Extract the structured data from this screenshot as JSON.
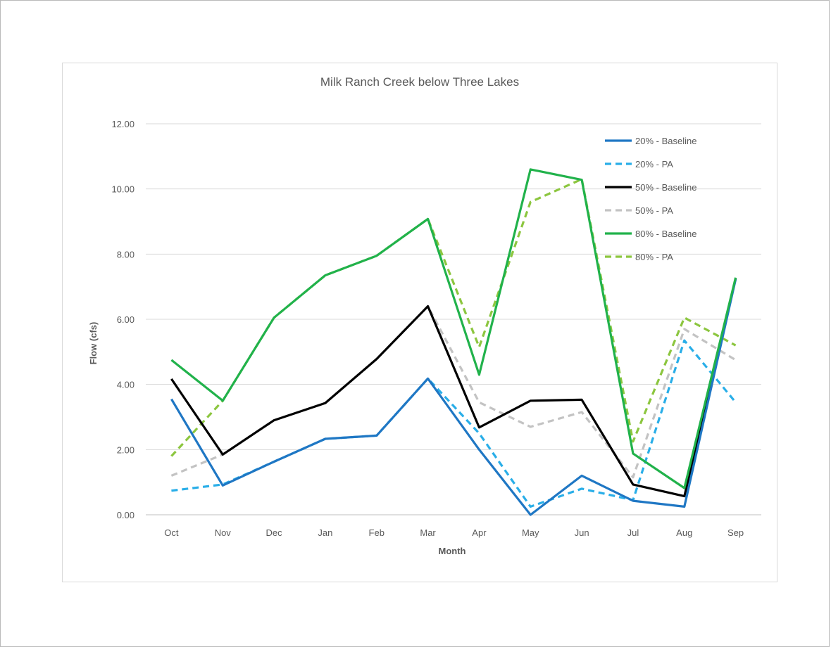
{
  "chart_data": {
    "type": "line",
    "title": "Milk Ranch Creek below Three Lakes",
    "xlabel": "Month",
    "ylabel": "Flow (cfs)",
    "ylim": [
      0,
      12
    ],
    "ytick_step": 2,
    "ytick_decimals": 2,
    "grid": "horizontal",
    "legend_position": "top-right",
    "categories": [
      "Oct",
      "Nov",
      "Dec",
      "Jan",
      "Feb",
      "Mar",
      "Apr",
      "May",
      "Jun",
      "Jul",
      "Aug",
      "Sep"
    ],
    "series": [
      {
        "name": "20% - Baseline",
        "color": "#1f77c4",
        "dashed": false,
        "values": [
          3.55,
          0.9,
          1.63,
          2.33,
          2.43,
          4.18,
          2.0,
          0.0,
          1.2,
          0.43,
          0.25,
          7.23
        ]
      },
      {
        "name": "20% - PA",
        "color": "#29aee8",
        "dashed": true,
        "values": [
          0.74,
          0.93,
          1.63,
          2.33,
          2.43,
          4.18,
          2.5,
          0.25,
          0.8,
          0.45,
          5.35,
          3.45
        ]
      },
      {
        "name": "50% - Baseline",
        "color": "#000000",
        "dashed": false,
        "values": [
          4.17,
          1.85,
          2.9,
          3.43,
          4.78,
          6.4,
          2.68,
          3.5,
          3.53,
          0.93,
          0.57,
          7.25
        ]
      },
      {
        "name": "50% - PA",
        "color": "#c3c3c3",
        "dashed": true,
        "values": [
          1.2,
          1.85,
          2.9,
          3.43,
          4.78,
          6.4,
          3.45,
          2.7,
          3.15,
          1.15,
          5.7,
          4.75
        ]
      },
      {
        "name": "80% - Baseline",
        "color": "#21b24b",
        "dashed": false,
        "values": [
          4.75,
          3.5,
          6.05,
          7.35,
          7.95,
          9.08,
          4.3,
          10.6,
          10.28,
          1.88,
          0.82,
          7.28
        ]
      },
      {
        "name": "80% - PA",
        "color": "#8cc63f",
        "dashed": true,
        "values": [
          1.8,
          3.5,
          6.05,
          7.35,
          7.95,
          9.08,
          5.15,
          9.6,
          10.3,
          2.25,
          6.05,
          5.2
        ]
      }
    ]
  }
}
